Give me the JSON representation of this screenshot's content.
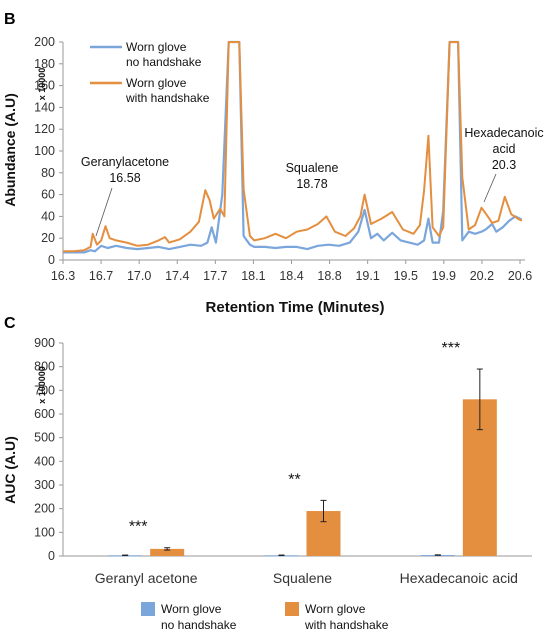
{
  "chart_data": [
    {
      "panel": "B",
      "type": "line",
      "xlabel": "Retention Time (Minutes)",
      "ylabel": "Abundance (A.U)",
      "y_multiplier": "x 10000",
      "xlim": [
        16.3,
        20.65
      ],
      "ylim": [
        0,
        200
      ],
      "x_ticks": [
        "16.3",
        "16.7",
        "17.0",
        "17.4",
        "17.7",
        "18.1",
        "18.4",
        "18.8",
        "19.1",
        "19.5",
        "19.9",
        "20.2",
        "20.6"
      ],
      "y_ticks": [
        "0",
        "20",
        "40",
        "60",
        "80",
        "100",
        "120",
        "140",
        "160",
        "180",
        "200"
      ],
      "legend": {
        "position": "top-left",
        "entries": [
          {
            "line1": "Worn glove",
            "line2": "no handshake",
            "color": "#7ba6dc"
          },
          {
            "line1": "Worn glove",
            "line2": "with handshake",
            "color": "#e48e3f"
          }
        ]
      },
      "annotations": [
        {
          "line1": "Geranylacetone",
          "line2": "16.58",
          "x": 16.58
        },
        {
          "line1": "Squalene",
          "line2": "18.78",
          "x": 18.78
        },
        {
          "line1": "Hexadecanoic",
          "line2": "acid",
          "line3": "20.3",
          "x": 20.3
        }
      ],
      "series": [
        {
          "name": "Worn glove no handshake",
          "color": "#7ba6dc",
          "x": [
            16.3,
            16.5,
            16.56,
            16.6,
            16.66,
            16.72,
            16.8,
            16.9,
            17.0,
            17.1,
            17.2,
            17.3,
            17.4,
            17.5,
            17.6,
            17.66,
            17.7,
            17.74,
            17.8,
            17.86,
            17.88,
            17.92,
            17.96,
            18.0,
            18.06,
            18.1,
            18.2,
            18.3,
            18.4,
            18.5,
            18.6,
            18.7,
            18.8,
            18.9,
            19.0,
            19.08,
            19.14,
            19.2,
            19.26,
            19.32,
            19.4,
            19.48,
            19.56,
            19.64,
            19.7,
            19.74,
            19.78,
            19.84,
            19.88,
            19.94,
            19.98,
            20.02,
            20.06,
            20.12,
            20.18,
            20.24,
            20.28,
            20.34,
            20.38,
            20.44,
            20.5,
            20.56,
            20.62
          ],
          "values": [
            7,
            7,
            9,
            8,
            13,
            11,
            13,
            11,
            10,
            11,
            12,
            10,
            12,
            14,
            13,
            16,
            30,
            16,
            60,
            200,
            200,
            200,
            200,
            22,
            14,
            12,
            12,
            11,
            12,
            12,
            10,
            13,
            14,
            13,
            16,
            26,
            46,
            20,
            24,
            18,
            25,
            18,
            16,
            14,
            18,
            38,
            16,
            16,
            45,
            200,
            200,
            200,
            18,
            26,
            24,
            26,
            28,
            33,
            26,
            30,
            36,
            40,
            37
          ]
        },
        {
          "name": "Worn glove with handshake",
          "color": "#e48e3f",
          "x": [
            16.3,
            16.4,
            16.5,
            16.56,
            16.58,
            16.62,
            16.66,
            16.7,
            16.74,
            16.8,
            16.9,
            17.0,
            17.1,
            17.2,
            17.26,
            17.3,
            17.4,
            17.5,
            17.58,
            17.64,
            17.68,
            17.72,
            17.78,
            17.82,
            17.86,
            17.88,
            17.92,
            17.96,
            18.0,
            18.06,
            18.1,
            18.2,
            18.3,
            18.4,
            18.5,
            18.6,
            18.7,
            18.78,
            18.86,
            18.96,
            19.04,
            19.1,
            19.14,
            19.2,
            19.3,
            19.4,
            19.5,
            19.6,
            19.66,
            19.7,
            19.74,
            19.78,
            19.84,
            19.88,
            19.94,
            19.98,
            20.02,
            20.06,
            20.12,
            20.18,
            20.24,
            20.3,
            20.34,
            20.4,
            20.46,
            20.52,
            20.58,
            20.62
          ],
          "values": [
            8,
            8,
            9,
            12,
            24,
            14,
            18,
            31,
            20,
            18,
            16,
            13,
            14,
            18,
            21,
            16,
            19,
            26,
            35,
            64,
            55,
            38,
            47,
            40,
            200,
            200,
            200,
            200,
            65,
            22,
            18,
            20,
            24,
            20,
            26,
            28,
            33,
            40,
            26,
            22,
            29,
            40,
            60,
            33,
            38,
            44,
            28,
            24,
            32,
            64,
            114,
            30,
            22,
            30,
            200,
            200,
            200,
            76,
            28,
            32,
            48,
            40,
            34,
            36,
            58,
            42,
            38,
            36
          ]
        }
      ]
    },
    {
      "panel": "C",
      "type": "bar",
      "ylabel": "AUC (A.U)",
      "y_multiplier": "x 100000",
      "ylim": [
        0,
        900
      ],
      "y_ticks": [
        "0",
        "100",
        "200",
        "300",
        "400",
        "500",
        "600",
        "700",
        "800",
        "900"
      ],
      "categories": [
        "Geranyl acetone",
        "Squalene",
        "Hexadecanoic acid"
      ],
      "significance": [
        "***",
        "**",
        "***"
      ],
      "legend": {
        "position": "bottom",
        "entries": [
          {
            "line1": "Worn glove",
            "line2": "no handshake",
            "color": "#7ba6dc"
          },
          {
            "line1": "Worn glove",
            "line2": "with handshake",
            "color": "#e48e3f"
          }
        ]
      },
      "series": [
        {
          "name": "Worn glove no handshake",
          "color": "#7ba6dc",
          "values": [
            3,
            3,
            4
          ],
          "errors": [
            1,
            1,
            1
          ]
        },
        {
          "name": "Worn glove with handshake",
          "color": "#e48e3f",
          "values": [
            30,
            190,
            662
          ],
          "errors": [
            5,
            45,
            128
          ]
        }
      ]
    }
  ]
}
